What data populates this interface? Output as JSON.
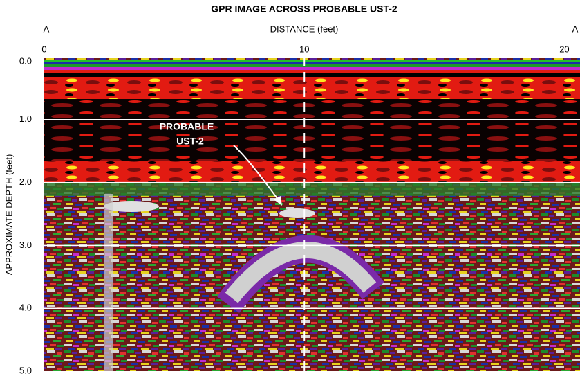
{
  "chart_data": {
    "type": "radargram",
    "title": "GPR IMAGE ACROSS PROBABLE UST-2",
    "x_label": "DISTANCE (feet)",
    "y_label": "APPROXIMATE DEPTH (feet)",
    "end_labels": [
      "A",
      "A"
    ],
    "xlim": [
      0,
      20.6
    ],
    "xticks": [
      0,
      10,
      20
    ],
    "ylim": [
      0,
      5
    ],
    "yticks": [
      {
        "value": 0,
        "label": "0.0"
      },
      {
        "value": 1,
        "label": "1.0"
      },
      {
        "value": 2,
        "label": "2.0"
      },
      {
        "value": 3,
        "label": "3.0"
      },
      {
        "value": 4,
        "label": "4.0"
      },
      {
        "value": 5,
        "label": "5.0"
      }
    ],
    "grid": true,
    "grid_color": "#ffffff",
    "vertical_marker": 10,
    "annotation": [
      "PROBABLE",
      "UST-2"
    ]
  }
}
